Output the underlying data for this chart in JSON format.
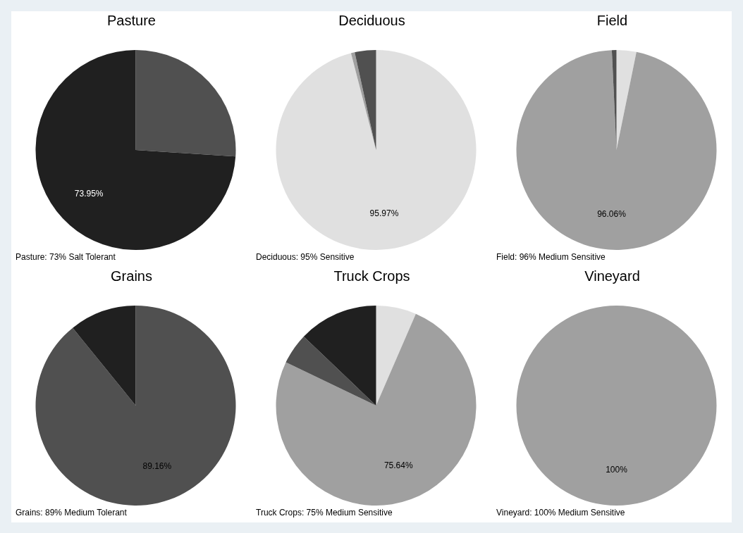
{
  "chart_data": [
    {
      "type": "pie",
      "title": "Pasture",
      "categories": [
        null,
        null
      ],
      "values": [
        26.05,
        73.95
      ],
      "colors": [
        "#505050",
        "#202020"
      ],
      "value_labels": [
        null,
        "73.95%"
      ],
      "annotations": [
        "Pasture: 73% Salt Tolerant"
      ]
    },
    {
      "type": "pie",
      "title": "Deciduous",
      "categories": [
        null,
        null,
        null
      ],
      "values": [
        95.97,
        0.6,
        3.43
      ],
      "colors": [
        "#e0e0e0",
        "#a0a0a0",
        "#505050"
      ],
      "value_labels": [
        "95.97%",
        null,
        null
      ],
      "annotations": [
        "Deciduous: 95% Sensitive"
      ]
    },
    {
      "type": "pie",
      "title": "Field",
      "categories": [
        null,
        null,
        null
      ],
      "values": [
        3.2,
        96.06,
        0.74
      ],
      "colors": [
        "#e0e0e0",
        "#a0a0a0",
        "#505050"
      ],
      "value_labels": [
        null,
        "96.06%",
        null
      ],
      "annotations": [
        "Field: 96% Medium Sensitive"
      ]
    },
    {
      "type": "pie",
      "title": "Grains",
      "categories": [
        null,
        null
      ],
      "values": [
        89.16,
        10.84
      ],
      "colors": [
        "#505050",
        "#202020"
      ],
      "value_labels": [
        "89.16%",
        null
      ],
      "annotations": [
        "Grains: 89% Medium Tolerant"
      ]
    },
    {
      "type": "pie",
      "title": "Truck Crops",
      "categories": [
        null,
        null,
        null,
        null
      ],
      "values": [
        6.5,
        75.64,
        5,
        12.86
      ],
      "colors": [
        "#e0e0e0",
        "#a0a0a0",
        "#505050",
        "#202020"
      ],
      "value_labels": [
        null,
        "75.64%",
        null,
        null
      ],
      "annotations": [
        "Truck Crops: 75% Medium Sensitive"
      ]
    },
    {
      "type": "pie",
      "title": "Vineyard",
      "categories": [
        null
      ],
      "values": [
        100
      ],
      "colors": [
        "#a0a0a0"
      ],
      "value_labels": [
        "100%"
      ],
      "annotations": [
        "Vineyard: 100% Medium Sensitive"
      ]
    }
  ]
}
